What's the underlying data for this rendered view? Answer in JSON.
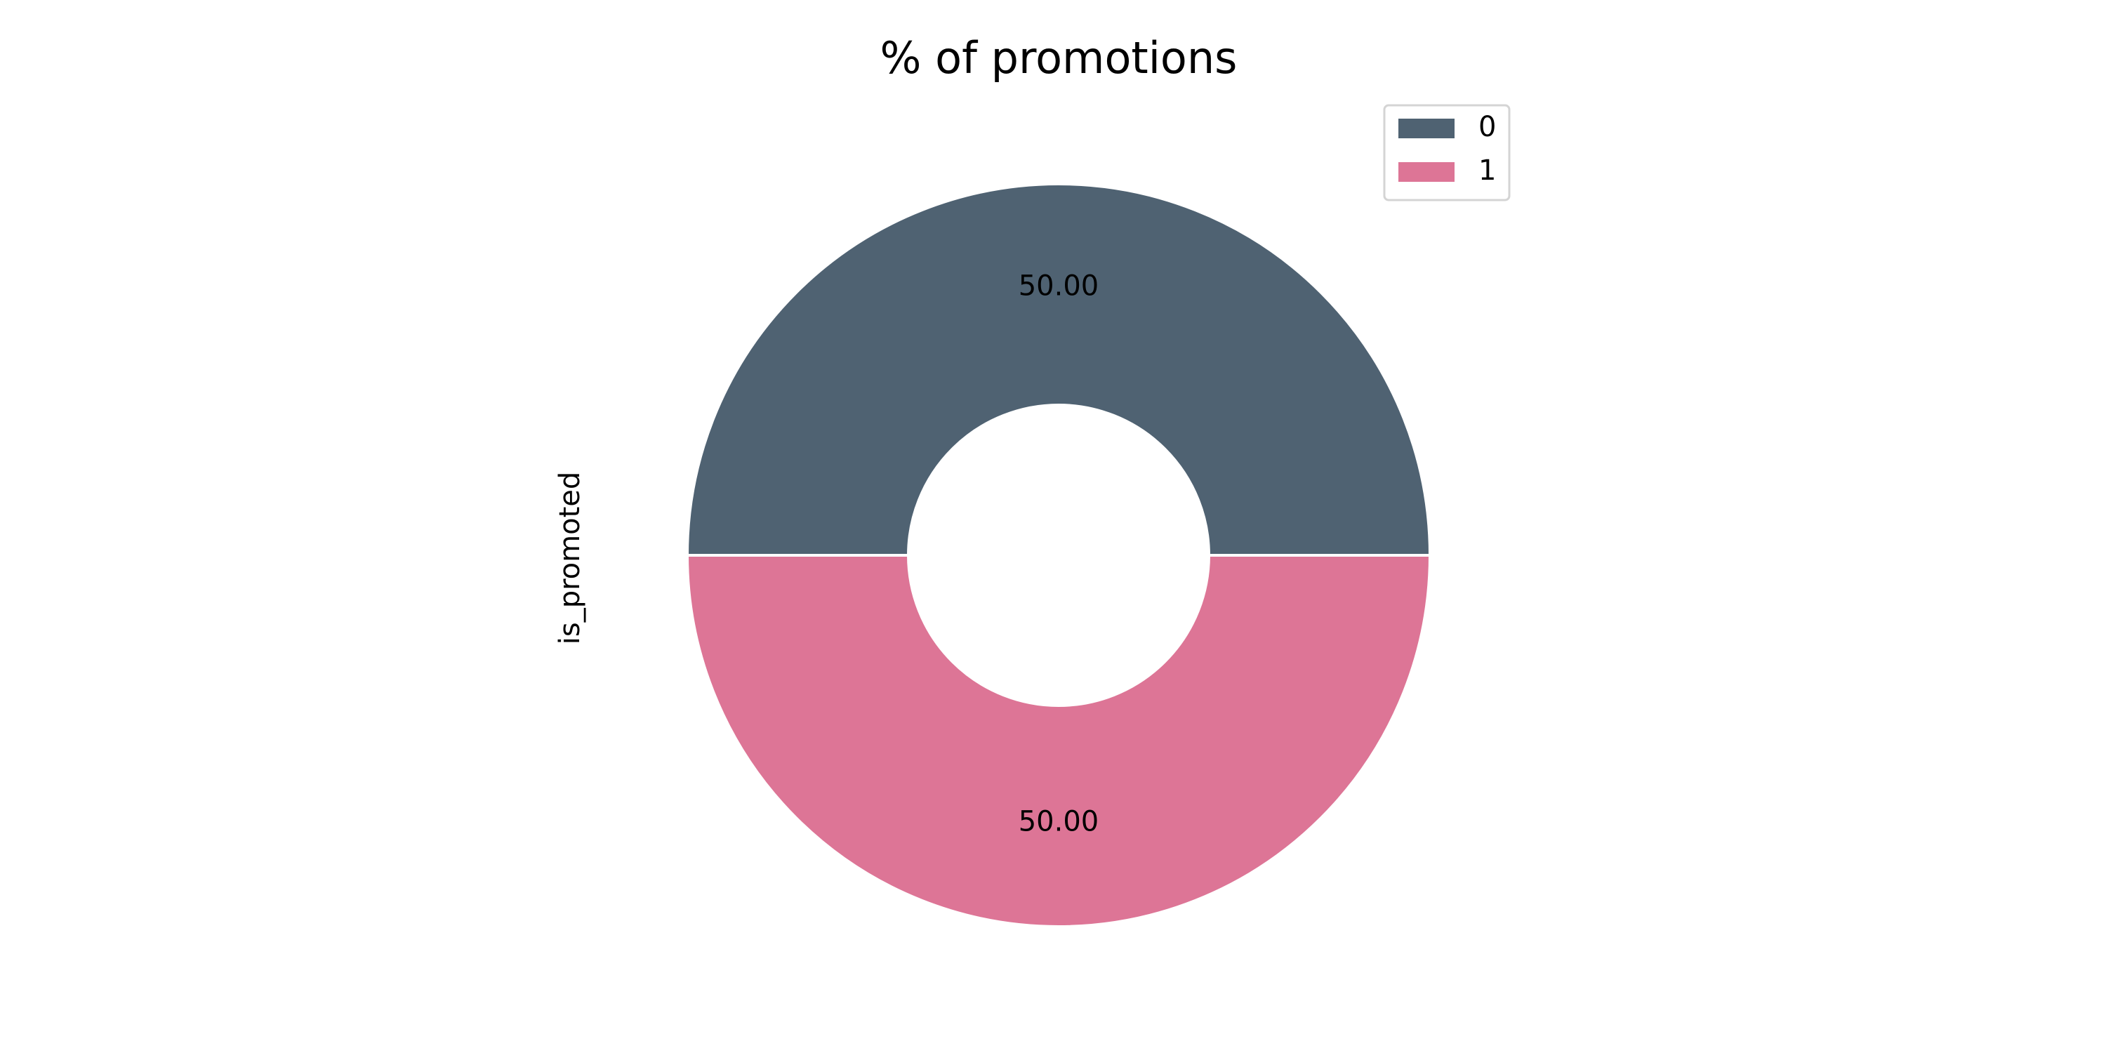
{
  "chart_data": {
    "type": "pie",
    "title": "% of promotions",
    "ylabel": "is_promoted",
    "xlabel": "",
    "labels": [
      "0",
      "1"
    ],
    "values": [
      50.0,
      50.0
    ],
    "value_labels": [
      "50.00",
      "50.00"
    ],
    "colors": [
      "#4f6272",
      "#dd7596"
    ],
    "donut": true,
    "start_angle_deg": 0,
    "direction": "counterclockwise",
    "legend_position": "top-right",
    "grid": false
  }
}
